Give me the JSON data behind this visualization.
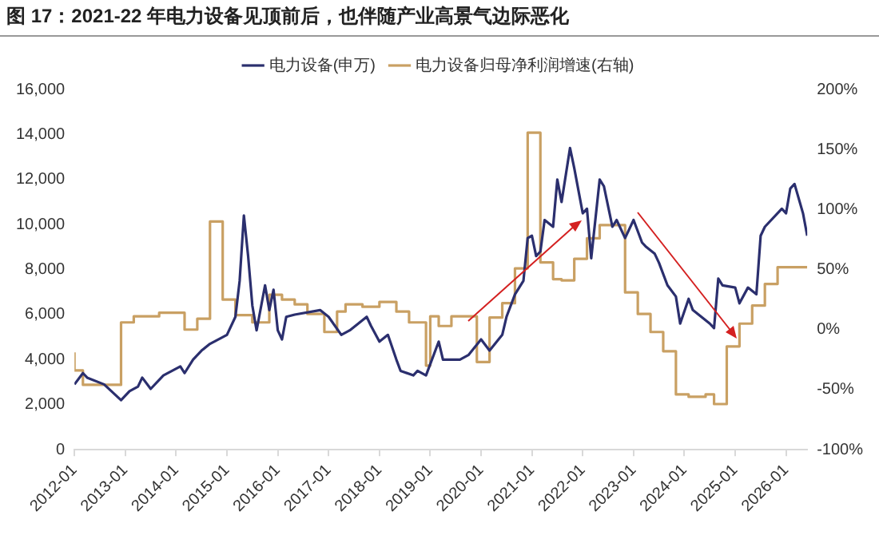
{
  "chart_data": {
    "type": "line",
    "title": "图 17：2021-22 年电力设备见顶前后，也伴随产业高景气边际恶化",
    "xlim": [
      "2012-01",
      "2026-06"
    ],
    "xticks": [
      "2012-01",
      "2013-01",
      "2014-01",
      "2015-01",
      "2016-01",
      "2017-01",
      "2018-01",
      "2019-01",
      "2020-01",
      "2021-01",
      "2022-01",
      "2023-01",
      "2024-01",
      "2025-01",
      "2026-01"
    ],
    "ylim": [
      0,
      16000
    ],
    "yticks": [
      {
        "value": 0,
        "label": "0"
      },
      {
        "value": 2000,
        "label": "2,000"
      },
      {
        "value": 4000,
        "label": "4,000"
      },
      {
        "value": 6000,
        "label": "6,000"
      },
      {
        "value": 8000,
        "label": "8,000"
      },
      {
        "value": 10000,
        "label": "10,000"
      },
      {
        "value": 12000,
        "label": "12,000"
      },
      {
        "value": 14000,
        "label": "14,000"
      },
      {
        "value": 16000,
        "label": "16,000"
      }
    ],
    "y2lim": [
      -100,
      200
    ],
    "y2ticks": [
      {
        "value": -100,
        "label": "-100%"
      },
      {
        "value": -50,
        "label": "-50%"
      },
      {
        "value": 0,
        "label": "0%"
      },
      {
        "value": 50,
        "label": "50%"
      },
      {
        "value": 100,
        "label": "100%"
      },
      {
        "value": 150,
        "label": "150%"
      },
      {
        "value": 200,
        "label": "200%"
      }
    ],
    "grid": false,
    "legend": "top",
    "marker": "none",
    "line_style": "solid",
    "series": [
      {
        "name": "电力设备(申万)",
        "type": "line",
        "color": "#2b2f6e",
        "x": [
          "2012-01",
          "2012-03",
          "2012-04",
          "2012-08",
          "2012-12",
          "2013-02",
          "2013-04",
          "2013-05",
          "2013-07",
          "2013-10",
          "2014-02",
          "2014-03",
          "2014-05",
          "2014-07",
          "2014-09",
          "2015-01",
          "2015-03",
          "2015-04",
          "2015-05",
          "2015-06",
          "2015-07",
          "2015-08",
          "2015-10",
          "2015-11",
          "2015-12",
          "2016-01",
          "2016-02",
          "2016-03",
          "2016-05",
          "2016-11",
          "2017-01",
          "2017-04",
          "2017-06",
          "2017-10",
          "2017-11",
          "2018-01",
          "2018-03",
          "2018-05",
          "2018-06",
          "2018-09",
          "2018-10",
          "2018-12",
          "2019-03",
          "2019-04",
          "2019-08",
          "2019-10",
          "2020-01",
          "2020-03",
          "2020-06",
          "2020-07",
          "2020-09",
          "2020-11",
          "2020-12",
          "2021-01",
          "2021-02",
          "2021-03",
          "2021-04",
          "2021-06",
          "2021-07",
          "2021-08",
          "2021-10",
          "2021-11",
          "2022-01",
          "2022-02",
          "2022-03",
          "2022-05",
          "2022-06",
          "2022-08",
          "2022-09",
          "2022-11",
          "2023-01",
          "2023-03",
          "2023-04",
          "2023-06",
          "2023-07",
          "2023-09",
          "2023-11",
          "2023-12",
          "2024-02",
          "2024-03",
          "2024-07",
          "2024-08",
          "2024-09",
          "2024-10",
          "2025-01",
          "2025-02",
          "2025-04",
          "2025-06",
          "2025-07",
          "2025-08",
          "2025-12",
          "2026-01",
          "2026-02",
          "2026-03",
          "2026-05",
          "2026-06"
        ],
        "values": [
          2900,
          3400,
          3200,
          2900,
          2200,
          2600,
          2800,
          3200,
          2700,
          3300,
          3700,
          3400,
          4000,
          4400,
          4700,
          5100,
          5900,
          7500,
          10400,
          8600,
          6400,
          5300,
          7300,
          6200,
          7100,
          5300,
          4900,
          5900,
          6000,
          6200,
          5900,
          5100,
          5300,
          5900,
          5500,
          4800,
          5100,
          4000,
          3500,
          3300,
          3500,
          3300,
          4800,
          4000,
          4000,
          4200,
          4900,
          4400,
          5100,
          5900,
          6900,
          7500,
          9400,
          9500,
          8600,
          8800,
          10200,
          9900,
          12000,
          11000,
          13400,
          12500,
          10500,
          10700,
          8500,
          12000,
          11700,
          9900,
          10200,
          9400,
          10200,
          9200,
          9000,
          8700,
          8300,
          7300,
          6800,
          5600,
          6700,
          6200,
          5600,
          5400,
          7600,
          7300,
          7200,
          6500,
          7200,
          6900,
          9500,
          9900,
          10700,
          10500,
          11600,
          11800,
          10500,
          9500
        ]
      },
      {
        "name": "电力设备归母净利润增速(右轴)",
        "type": "step",
        "axis": "y2",
        "color": "#c9a063",
        "x": [
          "2012-01",
          "2012-03",
          "2012-12",
          "2013-03",
          "2013-09",
          "2014-03",
          "2014-06",
          "2014-09",
          "2014-12",
          "2015-03",
          "2015-07",
          "2015-11",
          "2016-02",
          "2016-05",
          "2016-08",
          "2016-12",
          "2017-03",
          "2017-05",
          "2017-09",
          "2018-01",
          "2018-05",
          "2018-08",
          "2018-12",
          "2019-01",
          "2019-03",
          "2019-06",
          "2019-12",
          "2020-03",
          "2020-06",
          "2020-09",
          "2020-12",
          "2021-03",
          "2021-06",
          "2021-08",
          "2021-11",
          "2022-02",
          "2022-05",
          "2022-11",
          "2023-02",
          "2023-05",
          "2023-08",
          "2023-11",
          "2024-02",
          "2024-06",
          "2024-08",
          "2024-11",
          "2025-02",
          "2025-05",
          "2025-08",
          "2025-11",
          "2026-02",
          "2026-06"
        ],
        "values": [
          -19,
          -34,
          -46,
          6,
          11,
          14,
          0,
          9,
          90,
          25,
          12,
          6,
          29,
          25,
          21,
          13,
          -2,
          15,
          21,
          19,
          23,
          15,
          6,
          -30,
          11,
          3,
          11,
          -27,
          10,
          22,
          51,
          164,
          56,
          42,
          41,
          59,
          76,
          87,
          31,
          13,
          -2,
          -18,
          -54,
          -56,
          -54,
          -62,
          -14,
          5,
          20,
          38,
          52,
          52
        ]
      }
    ]
  }
}
